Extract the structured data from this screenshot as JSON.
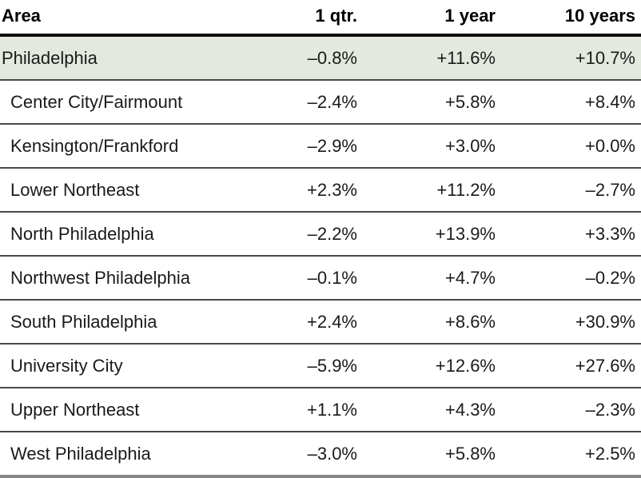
{
  "colors": {
    "highlight_row_bg": "#e3e9de",
    "header_rule": "#0d0d0d",
    "row_rule": "#4a4a4a",
    "bottom_rule": "#868686",
    "text": "#1a1a1a"
  },
  "table": {
    "headers": {
      "area": "Area",
      "qtr": "1 qtr.",
      "year1": "1 year",
      "year10": "10 years"
    },
    "rows": [
      {
        "area": "Philadelphia",
        "qtr": "–0.8%",
        "year1": "+11.6%",
        "year10": "+10.7%",
        "highlight": true
      },
      {
        "area": "Center City/Fairmount",
        "qtr": "–2.4%",
        "year1": "+5.8%",
        "year10": "+8.4%",
        "highlight": false
      },
      {
        "area": "Kensington/Frankford",
        "qtr": "–2.9%",
        "year1": "+3.0%",
        "year10": "+0.0%",
        "highlight": false
      },
      {
        "area": "Lower Northeast",
        "qtr": "+2.3%",
        "year1": "+11.2%",
        "year10": "–2.7%",
        "highlight": false
      },
      {
        "area": "North Philadelphia",
        "qtr": "–2.2%",
        "year1": "+13.9%",
        "year10": "+3.3%",
        "highlight": false
      },
      {
        "area": "Northwest Philadelphia",
        "qtr": "–0.1%",
        "year1": "+4.7%",
        "year10": "–0.2%",
        "highlight": false
      },
      {
        "area": "South Philadelphia",
        "qtr": "+2.4%",
        "year1": "+8.6%",
        "year10": "+30.9%",
        "highlight": false
      },
      {
        "area": "University City",
        "qtr": "–5.9%",
        "year1": "+12.6%",
        "year10": "+27.6%",
        "highlight": false
      },
      {
        "area": "Upper Northeast",
        "qtr": "+1.1%",
        "year1": "+4.3%",
        "year10": "–2.3%",
        "highlight": false
      },
      {
        "area": "West Philadelphia",
        "qtr": "–3.0%",
        "year1": "+5.8%",
        "year10": "+2.5%",
        "highlight": false
      }
    ]
  },
  "chart_data": {
    "type": "table",
    "columns": [
      "Area",
      "1 qtr.",
      "1 year",
      "10 years"
    ],
    "unit": "percent change",
    "rows": [
      [
        "Philadelphia",
        -0.8,
        11.6,
        10.7
      ],
      [
        "Center City/Fairmount",
        -2.4,
        5.8,
        8.4
      ],
      [
        "Kensington/Frankford",
        -2.9,
        3.0,
        0.0
      ],
      [
        "Lower Northeast",
        2.3,
        11.2,
        -2.7
      ],
      [
        "North Philadelphia",
        -2.2,
        13.9,
        3.3
      ],
      [
        "Northwest Philadelphia",
        -0.1,
        4.7,
        -0.2
      ],
      [
        "South Philadelphia",
        2.4,
        8.6,
        30.9
      ],
      [
        "University City",
        -5.9,
        12.6,
        27.6
      ],
      [
        "Upper Northeast",
        1.1,
        4.3,
        -2.3
      ],
      [
        "West Philadelphia",
        -3.0,
        5.8,
        2.5
      ]
    ],
    "layout_hints": {
      "numeric_columns_right_aligned": true,
      "first_row_highlighted": true,
      "grid": "horizontal rules only"
    }
  }
}
